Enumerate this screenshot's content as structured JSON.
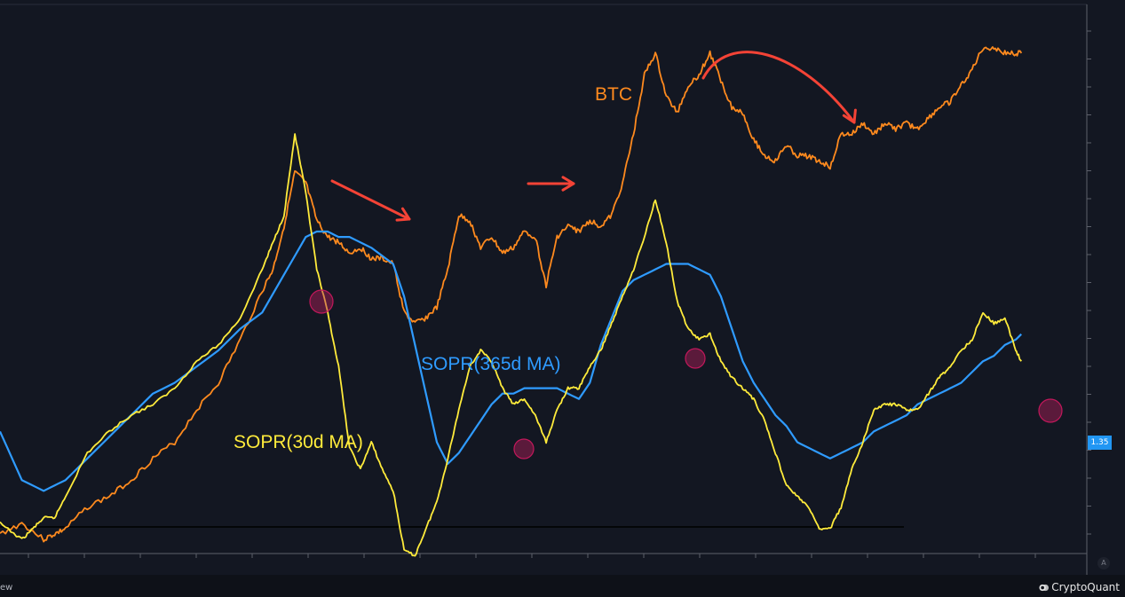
{
  "chart_data": {
    "type": "line",
    "x_range": [
      0,
      100
    ],
    "series": [
      {
        "name": "BTC",
        "color": "#ff8a1e",
        "points": [
          [
            0,
            21
          ],
          [
            2,
            23
          ],
          [
            4,
            20
          ],
          [
            5,
            21
          ],
          [
            6,
            22
          ],
          [
            8,
            26
          ],
          [
            10,
            28
          ],
          [
            12,
            31
          ],
          [
            14,
            35
          ],
          [
            16,
            38
          ],
          [
            18,
            44
          ],
          [
            20,
            49
          ],
          [
            22,
            57
          ],
          [
            24,
            66
          ],
          [
            25,
            70
          ],
          [
            26,
            78
          ],
          [
            27,
            88
          ],
          [
            28,
            86
          ],
          [
            29,
            79
          ],
          [
            30,
            76
          ],
          [
            31,
            75
          ],
          [
            32,
            73
          ],
          [
            33,
            74
          ],
          [
            34,
            72
          ],
          [
            35,
            72
          ],
          [
            36,
            71
          ],
          [
            37,
            62
          ],
          [
            38,
            60
          ],
          [
            39,
            61
          ],
          [
            40,
            63
          ],
          [
            41,
            70
          ],
          [
            42,
            80
          ],
          [
            43,
            79
          ],
          [
            44,
            74
          ],
          [
            45,
            76
          ],
          [
            46,
            73
          ],
          [
            47,
            74
          ],
          [
            48,
            77
          ],
          [
            49,
            76
          ],
          [
            50,
            67
          ],
          [
            51,
            76
          ],
          [
            52,
            78
          ],
          [
            53,
            77
          ],
          [
            54,
            79
          ],
          [
            55,
            78
          ],
          [
            56,
            80
          ],
          [
            57,
            86
          ],
          [
            58,
            95
          ],
          [
            59,
            106
          ],
          [
            60,
            110
          ],
          [
            61,
            102
          ],
          [
            62,
            99
          ],
          [
            63,
            104
          ],
          [
            64,
            106
          ],
          [
            65,
            110
          ],
          [
            66,
            105
          ],
          [
            67,
            100
          ],
          [
            68,
            99
          ],
          [
            69,
            94
          ],
          [
            70,
            91
          ],
          [
            71,
            90
          ],
          [
            72,
            93
          ],
          [
            73,
            91
          ],
          [
            74,
            91
          ],
          [
            75,
            90
          ],
          [
            76,
            89
          ],
          [
            77,
            95
          ],
          [
            78,
            95
          ],
          [
            79,
            97
          ],
          [
            80,
            95
          ],
          [
            81,
            97
          ],
          [
            82,
            96
          ],
          [
            83,
            97
          ],
          [
            84,
            96
          ],
          [
            85,
            98
          ],
          [
            86,
            100
          ],
          [
            87,
            101
          ],
          [
            88,
            104
          ],
          [
            89,
            107
          ],
          [
            90,
            111
          ],
          [
            91,
            111
          ],
          [
            92,
            110
          ],
          [
            93,
            110
          ],
          [
            93.5,
            110
          ]
        ]
      },
      {
        "name": "SOPR(30d MA)",
        "color": "#ffeb3b",
        "points": [
          [
            0,
            23
          ],
          [
            2,
            20
          ],
          [
            3,
            22
          ],
          [
            4,
            24
          ],
          [
            5,
            24
          ],
          [
            6,
            28
          ],
          [
            8,
            36
          ],
          [
            10,
            40
          ],
          [
            12,
            43
          ],
          [
            14,
            45
          ],
          [
            16,
            48
          ],
          [
            18,
            53
          ],
          [
            20,
            56
          ],
          [
            22,
            61
          ],
          [
            24,
            70
          ],
          [
            25,
            75
          ],
          [
            26,
            80
          ],
          [
            27,
            95
          ],
          [
            28,
            84
          ],
          [
            29,
            70
          ],
          [
            30,
            62
          ],
          [
            31,
            52
          ],
          [
            32,
            37
          ],
          [
            33,
            33
          ],
          [
            34,
            38
          ],
          [
            35,
            33
          ],
          [
            36,
            29
          ],
          [
            37,
            18
          ],
          [
            38,
            17
          ],
          [
            39,
            22
          ],
          [
            40,
            27
          ],
          [
            41,
            35
          ],
          [
            42,
            44
          ],
          [
            43,
            52
          ],
          [
            44,
            55
          ],
          [
            45,
            53
          ],
          [
            46,
            48
          ],
          [
            47,
            45
          ],
          [
            48,
            46
          ],
          [
            49,
            43
          ],
          [
            50,
            38
          ],
          [
            51,
            44
          ],
          [
            52,
            48
          ],
          [
            53,
            48
          ],
          [
            54,
            52
          ],
          [
            55,
            55
          ],
          [
            56,
            60
          ],
          [
            57,
            65
          ],
          [
            58,
            70
          ],
          [
            59,
            76
          ],
          [
            60,
            83
          ],
          [
            61,
            75
          ],
          [
            62,
            64
          ],
          [
            63,
            59
          ],
          [
            64,
            57
          ],
          [
            65,
            58
          ],
          [
            66,
            53
          ],
          [
            67,
            50
          ],
          [
            68,
            48
          ],
          [
            69,
            46
          ],
          [
            70,
            42
          ],
          [
            71,
            36
          ],
          [
            72,
            30
          ],
          [
            73,
            28
          ],
          [
            74,
            26
          ],
          [
            75,
            22
          ],
          [
            76,
            22
          ],
          [
            77,
            26
          ],
          [
            78,
            33
          ],
          [
            79,
            38
          ],
          [
            80,
            44
          ],
          [
            81,
            45
          ],
          [
            82,
            45
          ],
          [
            83,
            44
          ],
          [
            84,
            44
          ],
          [
            85,
            47
          ],
          [
            86,
            50
          ],
          [
            87,
            52
          ],
          [
            88,
            55
          ],
          [
            89,
            57
          ],
          [
            90,
            62
          ],
          [
            91,
            60
          ],
          [
            92,
            61
          ],
          [
            93,
            55
          ],
          [
            93.5,
            53
          ]
        ]
      },
      {
        "name": "SOPR(365d MA)",
        "color": "#2f9bff",
        "points": [
          [
            0,
            40
          ],
          [
            2,
            31
          ],
          [
            4,
            29
          ],
          [
            5,
            30
          ],
          [
            6,
            31
          ],
          [
            8,
            35
          ],
          [
            10,
            39
          ],
          [
            12,
            43
          ],
          [
            14,
            47
          ],
          [
            16,
            49
          ],
          [
            18,
            52
          ],
          [
            20,
            55
          ],
          [
            22,
            59
          ],
          [
            24,
            62
          ],
          [
            26,
            69
          ],
          [
            28,
            76
          ],
          [
            29,
            77
          ],
          [
            30,
            77
          ],
          [
            31,
            76
          ],
          [
            32,
            76
          ],
          [
            34,
            74
          ],
          [
            36,
            71
          ],
          [
            37,
            65
          ],
          [
            38,
            56
          ],
          [
            39,
            47
          ],
          [
            40,
            38
          ],
          [
            41,
            34
          ],
          [
            42,
            36
          ],
          [
            43,
            39
          ],
          [
            44,
            42
          ],
          [
            45,
            45
          ],
          [
            46,
            47
          ],
          [
            47,
            47
          ],
          [
            48,
            48
          ],
          [
            49,
            48
          ],
          [
            50,
            48
          ],
          [
            51,
            48
          ],
          [
            52,
            47
          ],
          [
            53,
            46
          ],
          [
            54,
            49
          ],
          [
            55,
            56
          ],
          [
            56,
            61
          ],
          [
            57,
            66
          ],
          [
            58,
            68
          ],
          [
            59,
            69
          ],
          [
            60,
            70
          ],
          [
            61,
            71
          ],
          [
            62,
            71
          ],
          [
            63,
            71
          ],
          [
            64,
            70
          ],
          [
            65,
            69
          ],
          [
            66,
            65
          ],
          [
            67,
            59
          ],
          [
            68,
            53
          ],
          [
            69,
            49
          ],
          [
            70,
            46
          ],
          [
            71,
            43
          ],
          [
            72,
            41
          ],
          [
            73,
            38
          ],
          [
            74,
            37
          ],
          [
            75,
            36
          ],
          [
            76,
            35
          ],
          [
            77,
            36
          ],
          [
            78,
            37
          ],
          [
            79,
            38
          ],
          [
            80,
            40
          ],
          [
            81,
            41
          ],
          [
            82,
            42
          ],
          [
            83,
            43
          ],
          [
            84,
            45
          ],
          [
            85,
            46
          ],
          [
            86,
            47
          ],
          [
            87,
            48
          ],
          [
            88,
            49
          ],
          [
            89,
            51
          ],
          [
            90,
            53
          ],
          [
            91,
            54
          ],
          [
            92,
            56
          ],
          [
            93,
            57
          ],
          [
            93.5,
            58
          ]
        ]
      }
    ],
    "annotations": [
      {
        "label": "BTC",
        "color": "#ff8a1e"
      },
      {
        "label": "SOPR(365d MA)",
        "color": "#2f9bff"
      },
      {
        "label": "SOPR(30d MA)",
        "color": "#ffeb3b"
      }
    ],
    "baseline": {
      "color": "#000000"
    },
    "price_label": "1.35",
    "grid": false
  },
  "footer": {
    "left_text": "ew",
    "brand": "CryptoQuant"
  },
  "axis_button": "A"
}
